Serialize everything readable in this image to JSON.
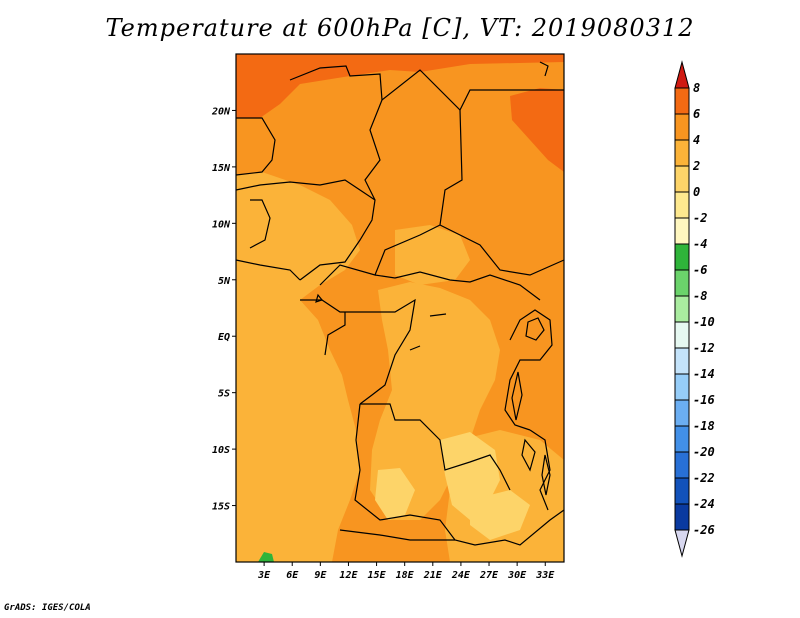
{
  "title": "Temperature at 600hPa [C], VT: 2019080312",
  "credit": "GrADS: IGES/COLA",
  "map": {
    "lat_range": [
      -20,
      25
    ],
    "lon_range": [
      0,
      35
    ],
    "lat_labels": [
      {
        "lat": 20,
        "label": "20N"
      },
      {
        "lat": 15,
        "label": "15N"
      },
      {
        "lat": 10,
        "label": "10N"
      },
      {
        "lat": 5,
        "label": "5N"
      },
      {
        "lat": 0,
        "label": "EQ"
      },
      {
        "lat": -5,
        "label": "5S"
      },
      {
        "lat": -10,
        "label": "10S"
      },
      {
        "lat": -15,
        "label": "15S"
      }
    ],
    "lon_labels": [
      {
        "lon": 3,
        "label": "3E"
      },
      {
        "lon": 6,
        "label": "6E"
      },
      {
        "lon": 9,
        "label": "9E"
      },
      {
        "lon": 12,
        "label": "12E"
      },
      {
        "lon": 15,
        "label": "15E"
      },
      {
        "lon": 18,
        "label": "18E"
      },
      {
        "lon": 21,
        "label": "21E"
      },
      {
        "lon": 24,
        "label": "24E"
      },
      {
        "lon": 27,
        "label": "27E"
      },
      {
        "lon": 30,
        "label": "30E"
      },
      {
        "lon": 33,
        "label": "33E"
      }
    ]
  },
  "colorbar": {
    "levels": [
      "8",
      "6",
      "4",
      "2",
      "0",
      "-2",
      "-4",
      "-6",
      "-8",
      "-10",
      "-12",
      "-14",
      "-16",
      "-18",
      "-20",
      "-22",
      "-24",
      "-26"
    ],
    "colors": [
      "#e8361f",
      "#f36a13",
      "#f89520",
      "#fbb339",
      "#fdd469",
      "#fee98f",
      "#fff7c0",
      "#2fb43a",
      "#6bd36b",
      "#aaeca0",
      "#e6f8f1",
      "#c4e3fa",
      "#96cdf8",
      "#6baef2",
      "#4290e8",
      "#2870d6",
      "#1252bb",
      "#0a3aa0",
      "#081d60"
    ],
    "top_arrow_color": "#d01a12",
    "bottom_arrow_color": "#d8d8f0"
  }
}
